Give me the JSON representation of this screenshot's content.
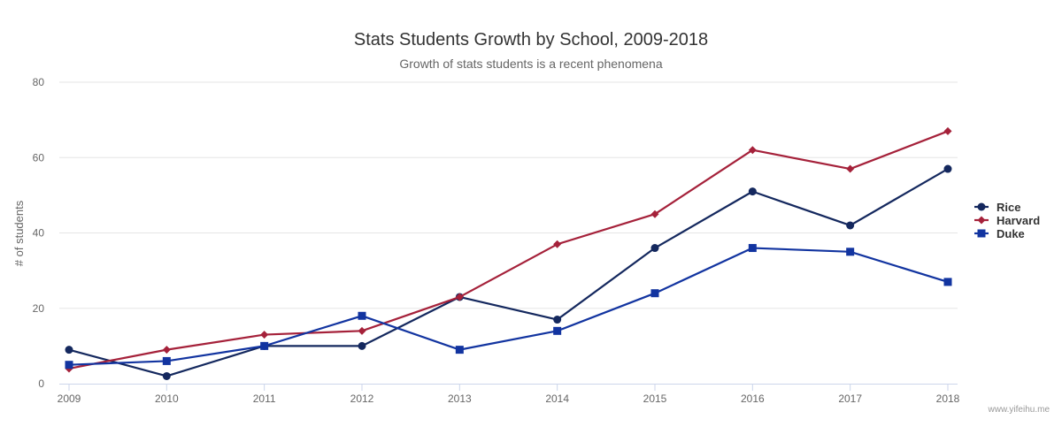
{
  "chart_data": {
    "type": "line",
    "title": "Stats Students Growth by School, 2009-2018",
    "subtitle": "Growth of stats students is a recent phenomena",
    "xlabel": "",
    "ylabel": "# of students",
    "x": [
      "2009",
      "2010",
      "2011",
      "2012",
      "2013",
      "2014",
      "2015",
      "2016",
      "2017",
      "2018"
    ],
    "ylim": [
      0,
      80
    ],
    "yticks": [
      0,
      20,
      40,
      60,
      80
    ],
    "grid": true,
    "legend_position": "right",
    "series": [
      {
        "name": "Rice",
        "values": [
          9,
          2,
          10,
          10,
          23,
          17,
          36,
          51,
          42,
          57
        ],
        "color": "#14285e",
        "marker": "circle"
      },
      {
        "name": "Harvard",
        "values": [
          4,
          9,
          13,
          14,
          23,
          37,
          45,
          62,
          57,
          67
        ],
        "color": "#a5213a",
        "marker": "diamond"
      },
      {
        "name": "Duke",
        "values": [
          5,
          6,
          10,
          18,
          9,
          14,
          24,
          36,
          35,
          27
        ],
        "color": "#1234a0",
        "marker": "square"
      }
    ]
  },
  "credit": "www.yifeihu.me"
}
